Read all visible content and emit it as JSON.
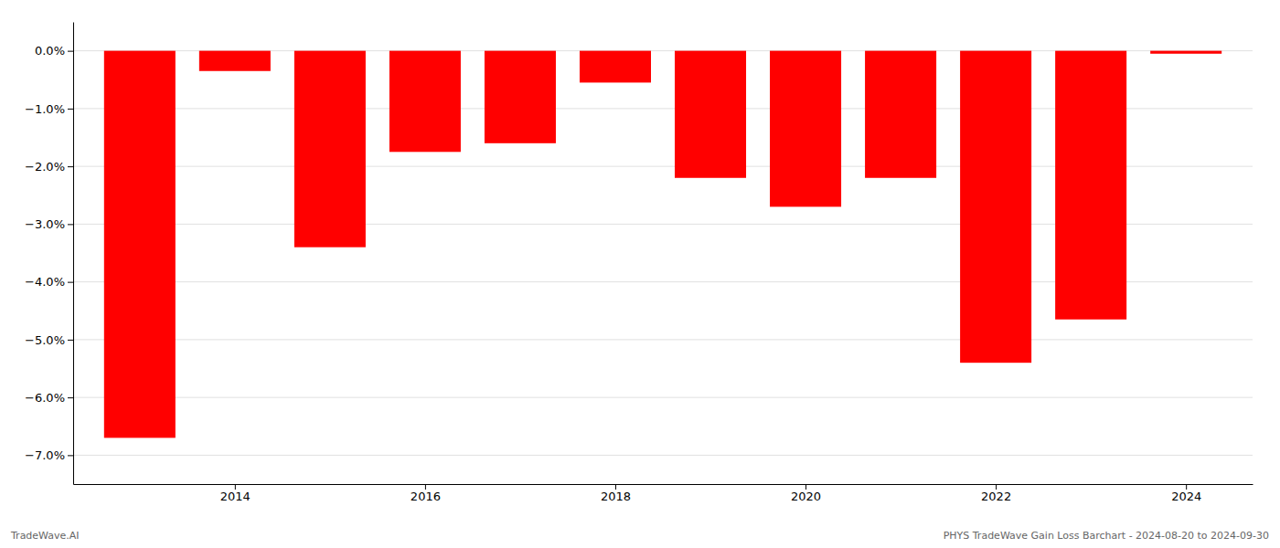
{
  "chart_data": {
    "type": "bar",
    "x": [
      2013,
      2014,
      2015,
      2016,
      2017,
      2018,
      2019,
      2020,
      2021,
      2022,
      2023,
      2024
    ],
    "values": [
      -6.7,
      -0.35,
      -3.4,
      -1.75,
      -1.6,
      -0.55,
      -2.2,
      -2.7,
      -2.2,
      -5.4,
      -4.65,
      -0.05
    ],
    "color": "#ff0000",
    "xlim": [
      2012.3,
      2024.7
    ],
    "xticks": [
      2014,
      2016,
      2018,
      2020,
      2022,
      2024
    ],
    "ylim": [
      -7.5,
      0.5
    ],
    "yticks": [
      {
        "value": 0.0,
        "label": "0.0%"
      },
      {
        "value": -1.0,
        "label": "−1.0%"
      },
      {
        "value": -2.0,
        "label": "−2.0%"
      },
      {
        "value": -3.0,
        "label": "−3.0%"
      },
      {
        "value": -4.0,
        "label": "−4.0%"
      },
      {
        "value": -5.0,
        "label": "−5.0%"
      },
      {
        "value": -6.0,
        "label": "−6.0%"
      },
      {
        "value": -7.0,
        "label": "−7.0%"
      }
    ],
    "grid": true,
    "annotations": [
      "TradeWave.AI",
      "PHYS TradeWave Gain Loss Barchart - 2024-08-20 to 2024-09-30"
    ]
  }
}
